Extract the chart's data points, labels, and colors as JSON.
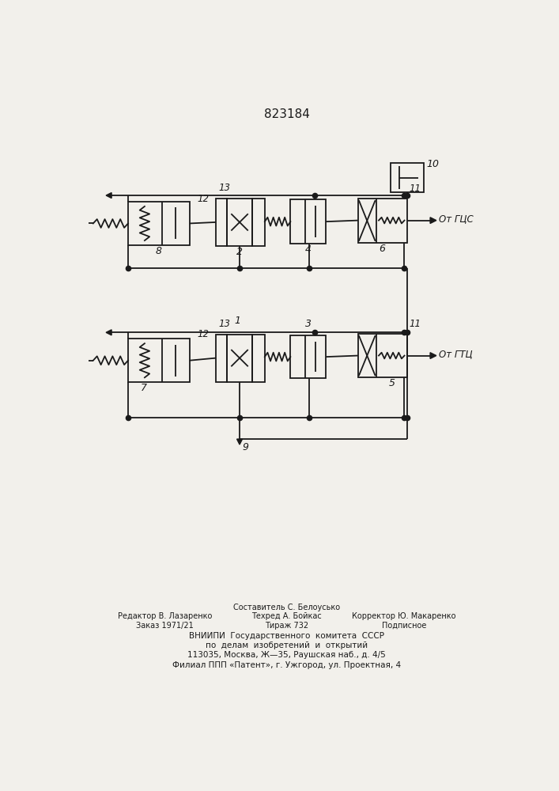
{
  "patent_number": "823184",
  "bg_color": "#f2f0eb",
  "lc": "#1a1a1a",
  "lw": 1.3,
  "footer": [
    [
      "Составитель С. Белоуськo",
      354,
      845,
      "center",
      7.0
    ],
    [
      "Редактор В. Лазаренко",
      155,
      860,
      "center",
      7.0
    ],
    [
      "Техред А. Бойкас",
      354,
      860,
      "center",
      7.0
    ],
    [
      "Корректор Ю. Макаренко",
      545,
      860,
      "center",
      7.0
    ],
    [
      "Заказ 1971/21",
      155,
      875,
      "center",
      7.0
    ],
    [
      "Тираж 732",
      354,
      875,
      "center",
      7.0
    ],
    [
      "Подписное",
      545,
      875,
      "center",
      7.0
    ],
    [
      "ВНИИПИ  Государственного  комитета  СССР",
      354,
      892,
      "center",
      7.5
    ],
    [
      "по  делам  изобретений  и  открытий",
      354,
      908,
      "center",
      7.5
    ],
    [
      "113035, Москва, Ж—35, Раушская наб., д. 4/5",
      354,
      924,
      "center",
      7.5
    ],
    [
      "Филиал ППП «Патент», г. Ужгород, ул. Проектная, 4",
      354,
      940,
      "center",
      7.5
    ]
  ]
}
